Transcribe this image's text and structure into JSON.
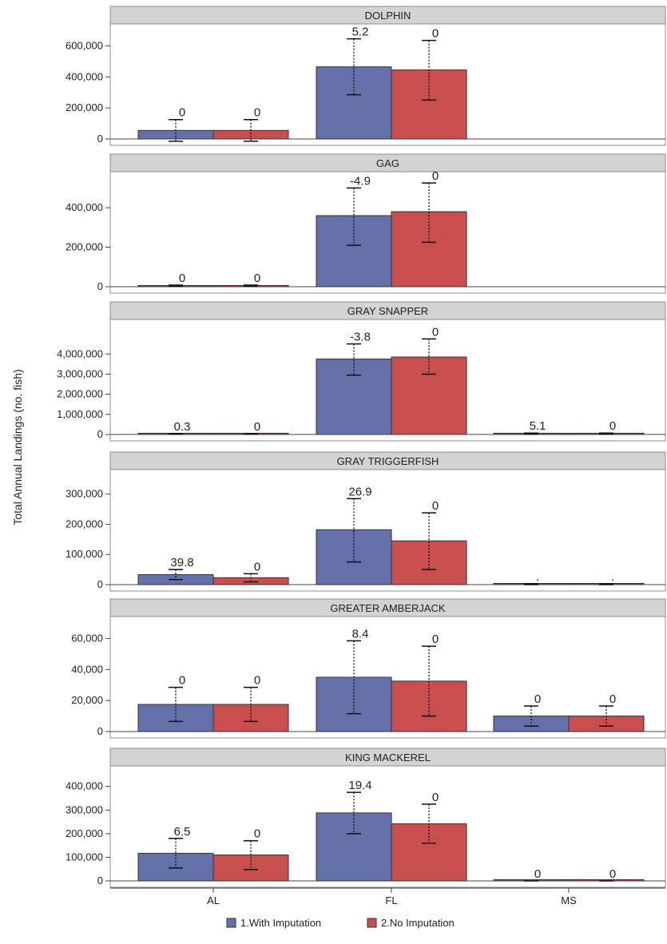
{
  "chart_data": {
    "type": "bar",
    "ylabel": "Total Annual Landings (no. fish)",
    "categories": [
      "AL",
      "FL",
      "MS"
    ],
    "series_names": [
      "1.With Imputation",
      "2.No Imputation"
    ],
    "colors": {
      "with_imputation": "#6470a8",
      "no_imputation": "#c94f4f",
      "header_fill": "#d3d3d3"
    },
    "legend_position": "bottom",
    "panels": [
      {
        "title": "DOLPHIN",
        "ylim": [
          0,
          700000
        ],
        "ticks": [
          0,
          200000,
          400000,
          600000
        ],
        "tick_labels": [
          "0",
          "200,000",
          "400,000",
          "600,000"
        ],
        "bars": [
          {
            "category": "AL",
            "series": 0,
            "value": 55000,
            "lower": -15000,
            "upper": 125000,
            "label": "0"
          },
          {
            "category": "AL",
            "series": 1,
            "value": 55000,
            "lower": -15000,
            "upper": 125000,
            "label": "0"
          },
          {
            "category": "FL",
            "series": 0,
            "value": 465000,
            "lower": 285000,
            "upper": 645000,
            "label": "5.2"
          },
          {
            "category": "FL",
            "series": 1,
            "value": 445000,
            "lower": 250000,
            "upper": 635000,
            "label": "0"
          }
        ]
      },
      {
        "title": "GAG",
        "ylim": [
          0,
          550000
        ],
        "ticks": [
          0,
          200000,
          400000
        ],
        "tick_labels": [
          "0",
          "200,000",
          "400,000"
        ],
        "bars": [
          {
            "category": "AL",
            "series": 0,
            "value": 5000,
            "lower": 2000,
            "upper": 8000,
            "label": "0"
          },
          {
            "category": "AL",
            "series": 1,
            "value": 5000,
            "lower": 2000,
            "upper": 8000,
            "label": "0"
          },
          {
            "category": "FL",
            "series": 0,
            "value": 360000,
            "lower": 210000,
            "upper": 500000,
            "label": "-4.9"
          },
          {
            "category": "FL",
            "series": 1,
            "value": 380000,
            "lower": 225000,
            "upper": 525000,
            "label": "0"
          }
        ]
      },
      {
        "title": "GRAY SNAPPER",
        "ylim": [
          0,
          5400000
        ],
        "ticks": [
          0,
          1000000,
          2000000,
          3000000,
          4000000
        ],
        "tick_labels": [
          "0",
          "1,000,000",
          "2,000,000",
          "3,000,000",
          "4,000,000"
        ],
        "bars": [
          {
            "category": "AL",
            "series": 0,
            "value": 25000,
            "lower": 10000,
            "upper": 40000,
            "label": "0.3"
          },
          {
            "category": "AL",
            "series": 1,
            "value": 25000,
            "lower": 10000,
            "upper": 40000,
            "label": "0"
          },
          {
            "category": "FL",
            "series": 0,
            "value": 3750000,
            "lower": 2950000,
            "upper": 4500000,
            "label": "-3.8"
          },
          {
            "category": "FL",
            "series": 1,
            "value": 3850000,
            "lower": 3000000,
            "upper": 4750000,
            "label": "0"
          },
          {
            "category": "MS",
            "series": 0,
            "value": 40000,
            "lower": 10000,
            "upper": 70000,
            "label": "5.1"
          },
          {
            "category": "MS",
            "series": 1,
            "value": 40000,
            "lower": 10000,
            "upper": 70000,
            "label": "0"
          }
        ]
      },
      {
        "title": "GRAY TRIGGERFISH",
        "ylim": [
          0,
          360000
        ],
        "ticks": [
          0,
          100000,
          200000,
          300000
        ],
        "tick_labels": [
          "0",
          "100,000",
          "200,000",
          "300,000"
        ],
        "bars": [
          {
            "category": "AL",
            "series": 0,
            "value": 33000,
            "lower": 17000,
            "upper": 50000,
            "label": "39.8"
          },
          {
            "category": "AL",
            "series": 1,
            "value": 23000,
            "lower": 9000,
            "upper": 36000,
            "label": "0"
          },
          {
            "category": "FL",
            "series": 0,
            "value": 182000,
            "lower": 75000,
            "upper": 285000,
            "label": "26.9"
          },
          {
            "category": "FL",
            "series": 1,
            "value": 145000,
            "lower": 50000,
            "upper": 238000,
            "label": "0"
          },
          {
            "category": "MS",
            "series": 0,
            "value": 0,
            "lower": 0,
            "upper": 3000,
            "label": "."
          },
          {
            "category": "MS",
            "series": 1,
            "value": 0,
            "lower": 0,
            "upper": 3000,
            "label": "."
          }
        ]
      },
      {
        "title": "GREATER AMBERJACK",
        "ylim": [
          0,
          70000
        ],
        "ticks": [
          0,
          20000,
          40000,
          60000
        ],
        "tick_labels": [
          "0",
          "20,000",
          "40,000",
          "60,000"
        ],
        "bars": [
          {
            "category": "AL",
            "series": 0,
            "value": 17500,
            "lower": 6500,
            "upper": 28500,
            "label": "0"
          },
          {
            "category": "AL",
            "series": 1,
            "value": 17500,
            "lower": 6500,
            "upper": 28500,
            "label": "0"
          },
          {
            "category": "FL",
            "series": 0,
            "value": 35000,
            "lower": 11500,
            "upper": 58500,
            "label": "8.4"
          },
          {
            "category": "FL",
            "series": 1,
            "value": 32500,
            "lower": 10000,
            "upper": 55000,
            "label": "0"
          },
          {
            "category": "MS",
            "series": 0,
            "value": 10000,
            "lower": 3500,
            "upper": 16500,
            "label": "0"
          },
          {
            "category": "MS",
            "series": 1,
            "value": 10000,
            "lower": 3500,
            "upper": 16500,
            "label": "0"
          }
        ]
      },
      {
        "title": "KING MACKEREL",
        "ylim": [
          0,
          460000
        ],
        "ticks": [
          0,
          100000,
          200000,
          300000,
          400000
        ],
        "tick_labels": [
          "0",
          "100,000",
          "200,000",
          "300,000",
          "400,000"
        ],
        "bars": [
          {
            "category": "AL",
            "series": 0,
            "value": 117000,
            "lower": 55000,
            "upper": 180000,
            "label": "6.5"
          },
          {
            "category": "AL",
            "series": 1,
            "value": 110000,
            "lower": 48000,
            "upper": 170000,
            "label": "0"
          },
          {
            "category": "FL",
            "series": 0,
            "value": 288000,
            "lower": 200000,
            "upper": 375000,
            "label": "19.4"
          },
          {
            "category": "FL",
            "series": 1,
            "value": 242000,
            "lower": 160000,
            "upper": 325000,
            "label": "0"
          },
          {
            "category": "MS",
            "series": 0,
            "value": 0,
            "lower": 0,
            "upper": 0,
            "label": "0"
          },
          {
            "category": "MS",
            "series": 1,
            "value": 0,
            "lower": 0,
            "upper": 0,
            "label": "0"
          }
        ]
      }
    ]
  }
}
